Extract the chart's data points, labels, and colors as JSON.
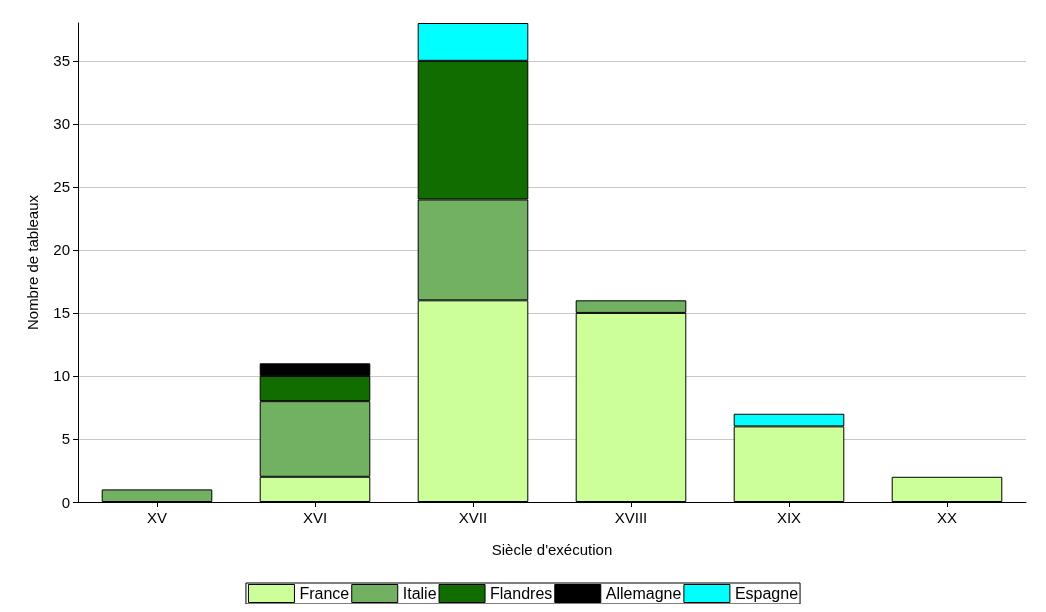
{
  "chart_data": {
    "type": "bar",
    "stacked": true,
    "xlabel": "Siècle d'exécution",
    "ylabel": "Nombre de tableaux",
    "categories": [
      "XV",
      "XVI",
      "XVII",
      "XVIII",
      "XIX",
      "XX"
    ],
    "series": [
      {
        "name": "France",
        "color": "#ccff99",
        "values": [
          0,
          2,
          16,
          15,
          6,
          2
        ]
      },
      {
        "name": "Italie",
        "color": "#72b062",
        "values": [
          1,
          6,
          8,
          1,
          0,
          0
        ]
      },
      {
        "name": "Flandres",
        "color": "#116d00",
        "values": [
          0,
          2,
          11,
          0,
          0,
          0
        ]
      },
      {
        "name": "Allemagne",
        "color": "#000000",
        "values": [
          0,
          1,
          0,
          0,
          0,
          0
        ]
      },
      {
        "name": "Espagne",
        "color": "#00ffff",
        "values": [
          0,
          0,
          3,
          0,
          1,
          0
        ]
      }
    ],
    "ylim": [
      0,
      38
    ],
    "yticks": [
      0,
      5,
      10,
      15,
      20,
      25,
      30,
      35
    ],
    "grid": "y",
    "legend": "bottom"
  }
}
